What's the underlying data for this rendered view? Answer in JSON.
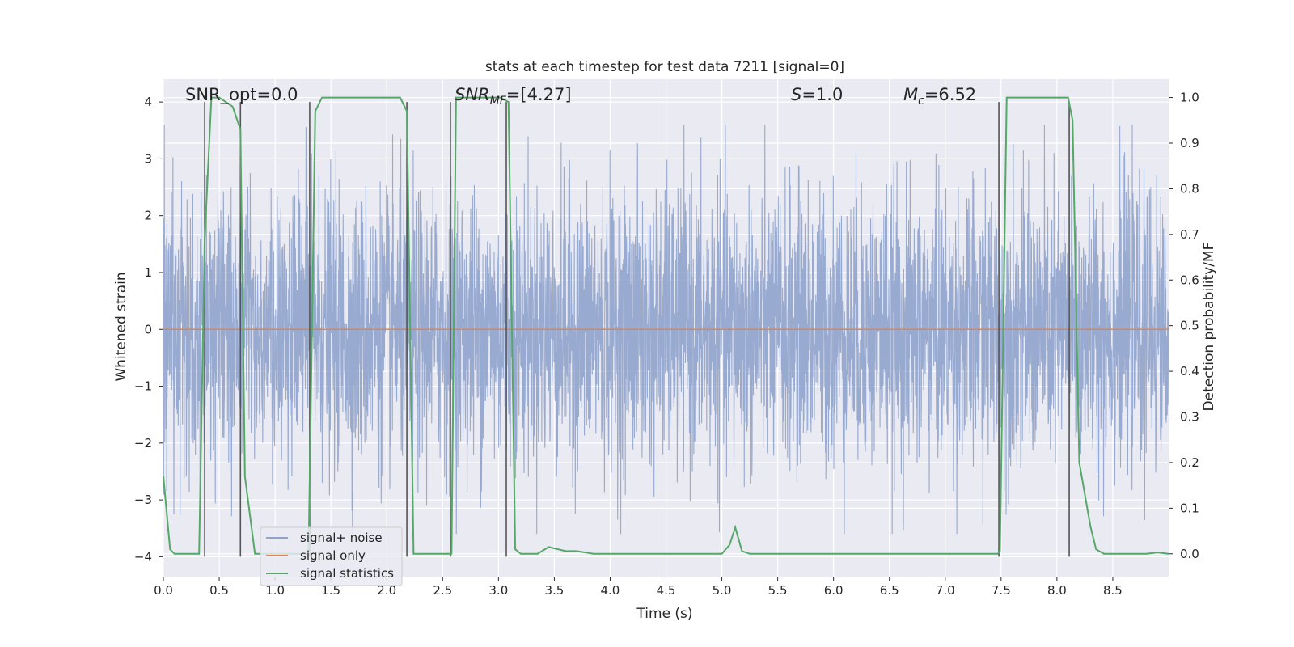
{
  "chart_data": {
    "type": "line",
    "title": "stats at each timestep for test data 7211 [signal=0]",
    "xlabel": "Time (s)",
    "ylabel": "Whitened strain",
    "y2label": "Detection probability/MF",
    "xlim": [
      0,
      9.0
    ],
    "ylim": [
      -4.35,
      4.4
    ],
    "y2lim": [
      -0.05,
      1.04
    ],
    "x_ticks": [
      0.0,
      0.5,
      1.0,
      1.5,
      2.0,
      2.5,
      3.0,
      3.5,
      4.0,
      4.5,
      5.0,
      5.5,
      6.0,
      6.5,
      7.0,
      7.5,
      8.0,
      8.5
    ],
    "y_ticks": [
      -4,
      -3,
      -2,
      -1,
      0,
      1,
      2,
      3,
      4
    ],
    "y2_ticks": [
      0.0,
      0.1,
      0.2,
      0.3,
      0.4,
      0.5,
      0.6,
      0.7,
      0.8,
      0.9,
      1.0
    ],
    "grid": true,
    "legend_position": "lower-left",
    "annotations": [
      "SNR_opt=0.0",
      "=[4.27]",
      "=1.0",
      "=6.52"
    ],
    "annotation_symbols": [
      "SNR",
      "MF",
      "S",
      "M",
      "c"
    ],
    "series": [
      {
        "name": "signal+ noise",
        "color": "#8fa3cc",
        "style": "dense-noise",
        "amplitude_typical": 1.6,
        "amplitude_max": 3.6
      },
      {
        "name": "signal only",
        "color": "#dd8452",
        "x": [
          0.0,
          9.0
        ],
        "y": [
          0.0,
          0.0
        ]
      },
      {
        "name": "signal statistics",
        "color": "#55a868",
        "axis": "right",
        "x": [
          0.0,
          0.06,
          0.1,
          0.3,
          0.32,
          0.37,
          0.43,
          0.5,
          0.62,
          0.69,
          0.73,
          0.82,
          0.9,
          1.25,
          1.3,
          1.36,
          1.42,
          1.5,
          2.12,
          2.18,
          2.24,
          2.3,
          2.55,
          2.58,
          2.62,
          2.7,
          3.02,
          3.09,
          3.15,
          3.2,
          3.35,
          3.45,
          3.6,
          3.7,
          3.85,
          4.2,
          4.9,
          5.0,
          5.07,
          5.12,
          5.18,
          5.25,
          6.0,
          7.47,
          7.49,
          7.55,
          7.6,
          8.05,
          8.1,
          8.14,
          8.2,
          8.3,
          8.35,
          8.42,
          8.6,
          8.8,
          8.9,
          9.0
        ],
        "y": [
          0.17,
          0.01,
          0.0,
          0.0,
          0.0,
          0.69,
          1.0,
          1.0,
          0.98,
          0.93,
          0.17,
          0.0,
          0.0,
          0.0,
          0.0,
          0.97,
          1.0,
          1.0,
          1.0,
          0.97,
          0.0,
          0.0,
          0.0,
          0.0,
          1.0,
          1.0,
          1.0,
          0.99,
          0.01,
          0.0,
          0.0,
          0.015,
          0.006,
          0.006,
          0.0,
          0.0,
          0.0,
          0.0,
          0.02,
          0.058,
          0.006,
          0.0,
          0.0,
          0.0,
          0.006,
          1.0,
          1.0,
          1.0,
          1.0,
          0.95,
          0.2,
          0.06,
          0.01,
          0.0,
          0.0,
          0.0,
          0.003,
          0.0
        ]
      }
    ],
    "vertical_markers": [
      0.37,
      0.69,
      1.31,
      2.18,
      2.57,
      3.07,
      7.48,
      8.11
    ]
  }
}
